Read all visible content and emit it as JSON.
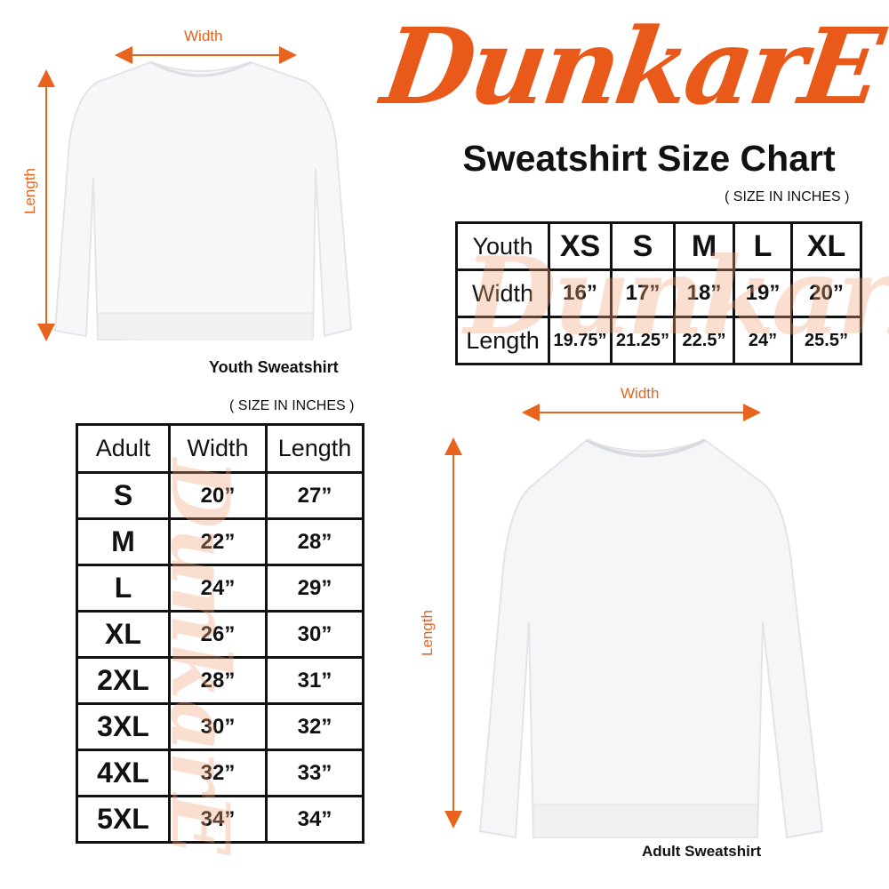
{
  "brand": {
    "logo_text": "DunkarE",
    "color": "#e8591a"
  },
  "title": "Sweatshirt Size Chart",
  "youth": {
    "unit_note": "( SIZE IN INCHES )",
    "caption": "Youth Sweatshirt",
    "width_label": "Width",
    "length_label": "Length",
    "table": {
      "header": [
        "Youth",
        "XS",
        "S",
        "M",
        "L",
        "XL"
      ],
      "rows": [
        [
          "Width",
          "16”",
          "17”",
          "18”",
          "19”",
          "20”"
        ],
        [
          "Length",
          "19.75”",
          "21.25”",
          "22.5”",
          "24”",
          "25.5”"
        ]
      ]
    }
  },
  "adult": {
    "unit_note": "( SIZE IN INCHES )",
    "caption": "Adult Sweatshirt",
    "width_label": "Width",
    "length_label": "Length",
    "table": {
      "header": [
        "Adult",
        "Width",
        "Length"
      ],
      "rows": [
        [
          "S",
          "20”",
          "27”"
        ],
        [
          "M",
          "22”",
          "28”"
        ],
        [
          "L",
          "24”",
          "29”"
        ],
        [
          "XL",
          "26”",
          "30”"
        ],
        [
          "2XL",
          "28”",
          "31”"
        ],
        [
          "3XL",
          "30”",
          "32”"
        ],
        [
          "4XL",
          "32”",
          "33”"
        ],
        [
          "5XL",
          "34”",
          "34”"
        ]
      ]
    }
  }
}
